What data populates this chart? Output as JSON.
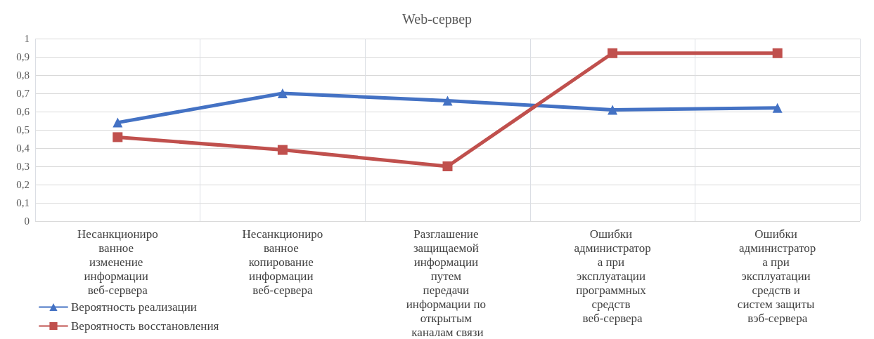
{
  "chart_data": {
    "type": "line",
    "title": "Web-сервер",
    "categories": [
      "Несанкционированное изменение информации веб-сервера",
      "Несанкционированное копирование информации веб-сервера",
      "Разглашение защищаемой информации путем передачи информации по открытым каналам связи",
      "Ошибки администратора при эксплуатации программных средств веб-сервера",
      "Ошибки администратора при эксплуатации средств и систем защиты вэб-сервера"
    ],
    "series": [
      {
        "name": "Вероятность реализации",
        "color": "#4472c4",
        "marker": "triangle",
        "values": [
          0.54,
          0.7,
          0.66,
          0.61,
          0.62
        ]
      },
      {
        "name": "Вероятность восстановления",
        "color": "#c0504d",
        "marker": "square",
        "values": [
          0.46,
          0.39,
          0.3,
          0.92,
          0.92
        ]
      }
    ],
    "ylim": [
      0,
      1
    ],
    "yticks": [
      0,
      {
        "value": 0.1,
        "label": "0,1"
      },
      {
        "value": 0.2,
        "label": "0,2"
      },
      {
        "value": 0.3,
        "label": "0,3"
      },
      {
        "value": 0.4,
        "label": "0,4"
      },
      {
        "value": 0.5,
        "label": "0,5"
      },
      {
        "value": 0.6,
        "label": "0,6"
      },
      {
        "value": 0.7,
        "label": "0,7"
      },
      {
        "value": 0.8,
        "label": "0,8"
      },
      {
        "value": 0.9,
        "label": "0,9"
      },
      1
    ],
    "grid": true,
    "legend": "bottom left",
    "line_style": "solid"
  }
}
